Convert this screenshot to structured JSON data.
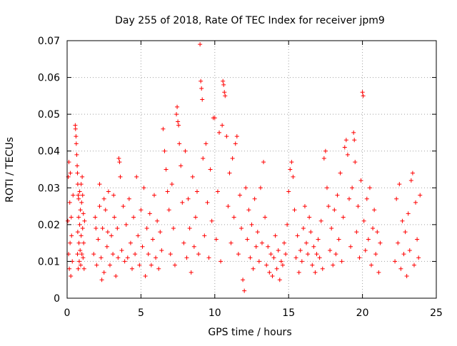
{
  "chart_data": {
    "type": "scatter",
    "title": "Day 255 of 2018, Rate Of TEC Index for receiver jpm9",
    "xlabel": "GPS time / hours",
    "ylabel": "ROTI / TECUs",
    "xlim": [
      0,
      25
    ],
    "ylim": [
      0,
      0.07
    ],
    "x_ticks": [
      0,
      5,
      10,
      15,
      20,
      25
    ],
    "x_tick_labels": [
      "0",
      "5",
      "10",
      "15",
      "20",
      "25"
    ],
    "y_ticks": [
      0,
      0.01,
      0.02,
      0.03,
      0.04,
      0.05,
      0.06,
      0.07
    ],
    "y_tick_labels": [
      "0",
      "0.01",
      "0.02",
      "0.03",
      "0.04",
      "0.05",
      "0.06",
      "0.07"
    ],
    "grid": true,
    "marker": "+",
    "color": "#ff0000",
    "series": [
      {
        "name": "ROTI",
        "points": [
          [
            0.05,
            0.021
          ],
          [
            0.08,
            0.033
          ],
          [
            0.1,
            0.012
          ],
          [
            0.12,
            0.037
          ],
          [
            0.15,
            0.008
          ],
          [
            0.18,
            0.026
          ],
          [
            0.2,
            0.015
          ],
          [
            0.22,
            0.034
          ],
          [
            0.25,
            0.006
          ],
          [
            0.28,
            0.022
          ],
          [
            0.3,
            0.017
          ],
          [
            0.35,
            0.01
          ],
          [
            0.4,
            0.028
          ],
          [
            0.55,
            0.047
          ],
          [
            0.57,
            0.046
          ],
          [
            0.6,
            0.044
          ],
          [
            0.62,
            0.042
          ],
          [
            0.65,
            0.039
          ],
          [
            0.68,
            0.036
          ],
          [
            0.7,
            0.034
          ],
          [
            0.72,
            0.031
          ],
          [
            0.75,
            0.028
          ],
          [
            0.78,
            0.027
          ],
          [
            0.7,
            0.012
          ],
          [
            0.72,
            0.018
          ],
          [
            0.75,
            0.008
          ],
          [
            0.78,
            0.022
          ],
          [
            0.8,
            0.015
          ],
          [
            0.82,
            0.01
          ],
          [
            0.85,
            0.02
          ],
          [
            0.88,
            0.013
          ],
          [
            0.9,
            0.024
          ],
          [
            0.92,
            0.009
          ],
          [
            0.95,
            0.017
          ],
          [
            0.98,
            0.026
          ],
          [
            1.0,
            0.012
          ],
          [
            1.02,
            0.033
          ],
          [
            1.05,
            0.019
          ],
          [
            1.08,
            0.011
          ],
          [
            1.1,
            0.023
          ],
          [
            1.12,
            0.015
          ],
          [
            1.15,
            0.008
          ],
          [
            1.18,
            0.021
          ],
          [
            0.85,
            0.029
          ],
          [
            0.95,
            0.031
          ],
          [
            1.05,
            0.028
          ],
          [
            1.8,
            0.012
          ],
          [
            1.9,
            0.022
          ],
          [
            2.0,
            0.009
          ],
          [
            2.1,
            0.016
          ],
          [
            2.2,
            0.025
          ],
          [
            2.3,
            0.011
          ],
          [
            2.4,
            0.019
          ],
          [
            2.5,
            0.007
          ],
          [
            2.6,
            0.024
          ],
          [
            2.7,
            0.014
          ],
          [
            2.8,
            0.029
          ],
          [
            2.9,
            0.009
          ],
          [
            3.0,
            0.017
          ],
          [
            3.1,
            0.012
          ],
          [
            3.2,
            0.022
          ],
          [
            3.3,
            0.006
          ],
          [
            3.4,
            0.019
          ],
          [
            3.5,
            0.038
          ],
          [
            3.55,
            0.037
          ],
          [
            3.6,
            0.033
          ],
          [
            3.7,
            0.013
          ],
          [
            3.8,
            0.025
          ],
          [
            3.9,
            0.01
          ],
          [
            2.2,
            0.031
          ],
          [
            2.5,
            0.027
          ],
          [
            1.95,
            0.019
          ],
          [
            2.35,
            0.005
          ],
          [
            2.75,
            0.018
          ],
          [
            3.15,
            0.028
          ],
          [
            3.45,
            0.011
          ],
          [
            4.0,
            0.02
          ],
          [
            4.1,
            0.011
          ],
          [
            4.2,
            0.027
          ],
          [
            4.3,
            0.015
          ],
          [
            4.4,
            0.008
          ],
          [
            4.5,
            0.022
          ],
          [
            4.6,
            0.012
          ],
          [
            4.7,
            0.033
          ],
          [
            4.8,
            0.017
          ],
          [
            4.9,
            0.009
          ],
          [
            5.0,
            0.024
          ],
          [
            5.1,
            0.014
          ],
          [
            5.2,
            0.03
          ],
          [
            5.3,
            0.006
          ],
          [
            5.4,
            0.019
          ],
          [
            5.5,
            0.012
          ],
          [
            5.6,
            0.023
          ],
          [
            5.7,
            0.009
          ],
          [
            5.8,
            0.016
          ],
          [
            5.9,
            0.028
          ],
          [
            6.0,
            0.011
          ],
          [
            6.1,
            0.021
          ],
          [
            6.2,
            0.008
          ],
          [
            6.3,
            0.018
          ],
          [
            6.4,
            0.013
          ],
          [
            6.5,
            0.046
          ],
          [
            6.6,
            0.04
          ],
          [
            6.7,
            0.035
          ],
          [
            6.8,
            0.029
          ],
          [
            6.9,
            0.024
          ],
          [
            7.0,
            0.012
          ],
          [
            7.1,
            0.031
          ],
          [
            7.2,
            0.019
          ],
          [
            7.3,
            0.009
          ],
          [
            7.4,
            0.05
          ],
          [
            7.45,
            0.052
          ],
          [
            7.5,
            0.048
          ],
          [
            7.55,
            0.047
          ],
          [
            7.6,
            0.042
          ],
          [
            7.7,
            0.036
          ],
          [
            7.8,
            0.026
          ],
          [
            7.9,
            0.015
          ],
          [
            8.0,
            0.04
          ],
          [
            8.1,
            0.011
          ],
          [
            8.2,
            0.027
          ],
          [
            8.3,
            0.019
          ],
          [
            8.4,
            0.007
          ],
          [
            8.5,
            0.033
          ],
          [
            8.6,
            0.014
          ],
          [
            8.7,
            0.022
          ],
          [
            8.8,
            0.029
          ],
          [
            8.9,
            0.012
          ],
          [
            9.0,
            0.069
          ],
          [
            9.05,
            0.059
          ],
          [
            9.1,
            0.057
          ],
          [
            9.15,
            0.054
          ],
          [
            9.2,
            0.038
          ],
          [
            9.3,
            0.017
          ],
          [
            9.4,
            0.042
          ],
          [
            9.5,
            0.026
          ],
          [
            9.6,
            0.011
          ],
          [
            9.7,
            0.035
          ],
          [
            9.8,
            0.021
          ],
          [
            9.9,
            0.049
          ],
          [
            10.0,
            0.049
          ],
          [
            10.1,
            0.016
          ],
          [
            10.2,
            0.029
          ],
          [
            10.3,
            0.045
          ],
          [
            10.4,
            0.01
          ],
          [
            10.5,
            0.047
          ],
          [
            10.55,
            0.059
          ],
          [
            10.6,
            0.058
          ],
          [
            10.65,
            0.056
          ],
          [
            10.7,
            0.055
          ],
          [
            10.8,
            0.044
          ],
          [
            10.9,
            0.025
          ],
          [
            11.0,
            0.034
          ],
          [
            11.1,
            0.015
          ],
          [
            11.2,
            0.038
          ],
          [
            11.3,
            0.022
          ],
          [
            11.4,
            0.042
          ],
          [
            11.5,
            0.044
          ],
          [
            11.6,
            0.012
          ],
          [
            11.7,
            0.028
          ],
          [
            11.8,
            0.019
          ],
          [
            11.9,
            0.005
          ],
          [
            12.0,
            0.002
          ],
          [
            12.1,
            0.03
          ],
          [
            12.2,
            0.016
          ],
          [
            12.3,
            0.024
          ],
          [
            12.4,
            0.011
          ],
          [
            12.5,
            0.02
          ],
          [
            12.6,
            0.008
          ],
          [
            12.7,
            0.027
          ],
          [
            12.8,
            0.014
          ],
          [
            12.9,
            0.018
          ],
          [
            13.0,
            0.01
          ],
          [
            13.1,
            0.03
          ],
          [
            13.2,
            0.015
          ],
          [
            13.3,
            0.037
          ],
          [
            13.4,
            0.022
          ],
          [
            13.5,
            0.009
          ],
          [
            13.6,
            0.014
          ],
          [
            13.7,
            0.007
          ],
          [
            13.8,
            0.012
          ],
          [
            13.9,
            0.006
          ],
          [
            14.0,
            0.011
          ],
          [
            14.1,
            0.017
          ],
          [
            14.2,
            0.008
          ],
          [
            14.3,
            0.013
          ],
          [
            14.4,
            0.005
          ],
          [
            14.5,
            0.01
          ],
          [
            14.6,
            0.009
          ],
          [
            14.7,
            0.015
          ],
          [
            14.8,
            0.012
          ],
          [
            14.9,
            0.02
          ],
          [
            15.0,
            0.029
          ],
          [
            15.1,
            0.035
          ],
          [
            15.2,
            0.037
          ],
          [
            15.3,
            0.033
          ],
          [
            15.4,
            0.024
          ],
          [
            15.5,
            0.011
          ],
          [
            15.6,
            0.017
          ],
          [
            15.7,
            0.007
          ],
          [
            15.8,
            0.013
          ],
          [
            15.9,
            0.01
          ],
          [
            16.0,
            0.019
          ],
          [
            16.1,
            0.025
          ],
          [
            16.2,
            0.015
          ],
          [
            16.3,
            0.012
          ],
          [
            16.4,
            0.022
          ],
          [
            16.5,
            0.018
          ],
          [
            16.6,
            0.009
          ],
          [
            16.7,
            0.014
          ],
          [
            16.8,
            0.007
          ],
          [
            16.9,
            0.012
          ],
          [
            17.0,
            0.016
          ],
          [
            17.1,
            0.011
          ],
          [
            17.2,
            0.021
          ],
          [
            17.3,
            0.008
          ],
          [
            17.4,
            0.038
          ],
          [
            17.5,
            0.04
          ],
          [
            17.6,
            0.03
          ],
          [
            17.7,
            0.025
          ],
          [
            17.8,
            0.013
          ],
          [
            17.9,
            0.019
          ],
          [
            18.0,
            0.009
          ],
          [
            18.1,
            0.024
          ],
          [
            18.2,
            0.012
          ],
          [
            18.3,
            0.028
          ],
          [
            18.4,
            0.016
          ],
          [
            18.5,
            0.034
          ],
          [
            18.6,
            0.01
          ],
          [
            18.7,
            0.022
          ],
          [
            18.8,
            0.041
          ],
          [
            18.9,
            0.043
          ],
          [
            19.0,
            0.039
          ],
          [
            19.1,
            0.027
          ],
          [
            19.2,
            0.014
          ],
          [
            19.3,
            0.03
          ],
          [
            19.4,
            0.045
          ],
          [
            19.45,
            0.043
          ],
          [
            19.5,
            0.037
          ],
          [
            19.6,
            0.018
          ],
          [
            19.7,
            0.025
          ],
          [
            19.8,
            0.011
          ],
          [
            19.9,
            0.032
          ],
          [
            20.0,
            0.056
          ],
          [
            20.05,
            0.055
          ],
          [
            20.1,
            0.021
          ],
          [
            20.2,
            0.013
          ],
          [
            20.3,
            0.027
          ],
          [
            20.4,
            0.016
          ],
          [
            20.5,
            0.03
          ],
          [
            20.6,
            0.009
          ],
          [
            20.7,
            0.019
          ],
          [
            20.8,
            0.024
          ],
          [
            20.9,
            0.012
          ],
          [
            21.0,
            0.018
          ],
          [
            21.1,
            0.007
          ],
          [
            21.2,
            0.015
          ],
          [
            22.2,
            0.01
          ],
          [
            22.3,
            0.027
          ],
          [
            22.4,
            0.015
          ],
          [
            22.5,
            0.031
          ],
          [
            22.6,
            0.008
          ],
          [
            22.7,
            0.021
          ],
          [
            22.8,
            0.012
          ],
          [
            22.9,
            0.018
          ],
          [
            23.0,
            0.006
          ],
          [
            23.1,
            0.023
          ],
          [
            23.2,
            0.013
          ],
          [
            23.3,
            0.032
          ],
          [
            23.4,
            0.034
          ],
          [
            23.5,
            0.009
          ],
          [
            23.6,
            0.026
          ],
          [
            23.7,
            0.016
          ],
          [
            23.8,
            0.011
          ],
          [
            23.9,
            0.028
          ]
        ]
      }
    ]
  }
}
